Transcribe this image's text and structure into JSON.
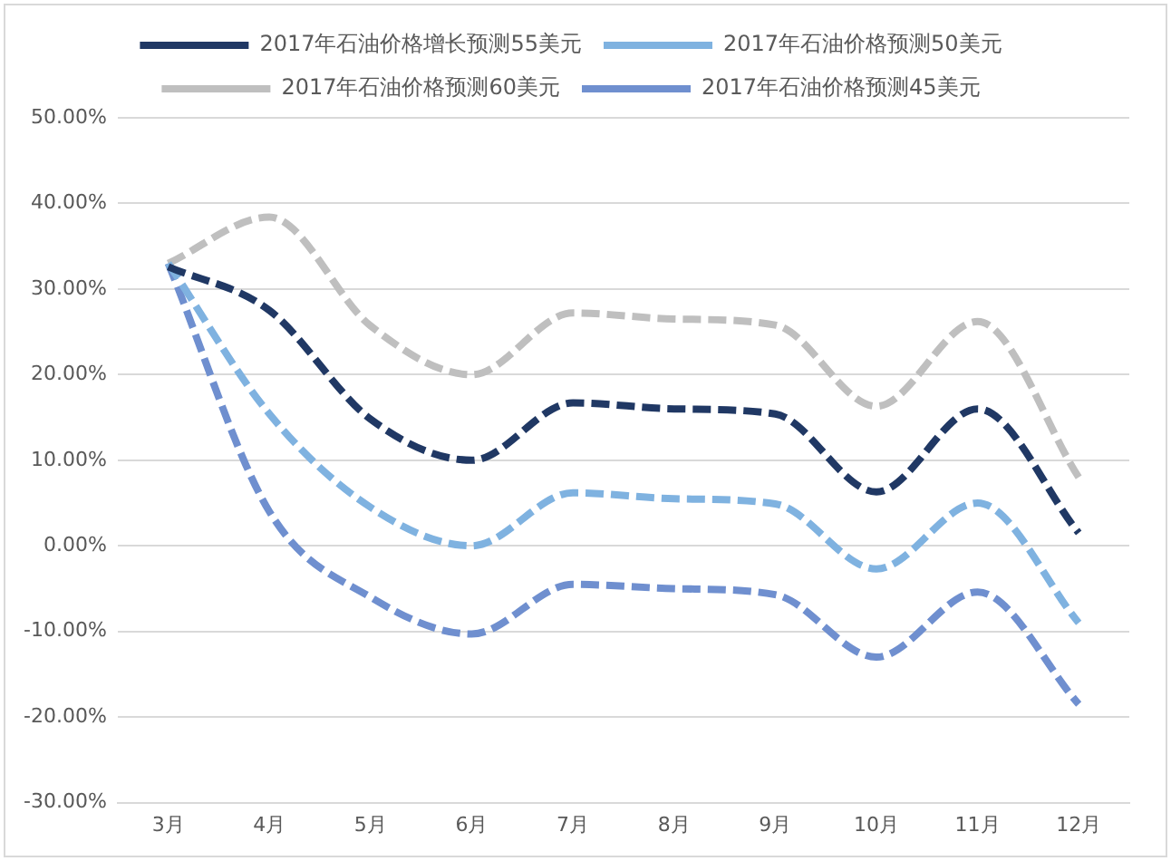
{
  "chart_data": {
    "type": "line",
    "categories": [
      "3月",
      "4月",
      "5月",
      "6月",
      "7月",
      "8月",
      "9月",
      "10月",
      "11月",
      "12月"
    ],
    "series": [
      {
        "name": "2017年石油价格增长预测55美元",
        "color": "#203864",
        "values": [
          32.6,
          27.5,
          14.8,
          10,
          16.7,
          16,
          15.4,
          6.3,
          16,
          1.5
        ]
      },
      {
        "name": "2017年石油价格预测50美元",
        "color": "#7fb2e0",
        "values": [
          33,
          15.4,
          4.5,
          0,
          6.2,
          5.5,
          4.9,
          -2.7,
          5,
          -9
        ]
      },
      {
        "name": "2017年石油价格预测60美元",
        "color": "#bfbfbf",
        "values": [
          33,
          38.4,
          25.7,
          20,
          27.2,
          26.5,
          25.8,
          16.3,
          26.2,
          8
        ]
      },
      {
        "name": "2017年石油价格预测45美元",
        "color": "#6f8fcf",
        "values": [
          33,
          4,
          -6,
          -10.3,
          -4.5,
          -5,
          -5.7,
          -13,
          -5.4,
          -18.5
        ]
      }
    ],
    "ylim": [
      -30,
      50
    ],
    "yticks": [
      {
        "value": -30,
        "label": "-30.00%"
      },
      {
        "value": -20,
        "label": "-20.00%"
      },
      {
        "value": -10,
        "label": "-10.00%"
      },
      {
        "value": 0,
        "label": "0.00%"
      },
      {
        "value": 10,
        "label": "10.00%"
      },
      {
        "value": 20,
        "label": "20.00%"
      },
      {
        "value": 30,
        "label": "30.00%"
      },
      {
        "value": 40,
        "label": "40.00%"
      },
      {
        "value": 50,
        "label": "50.00%"
      }
    ],
    "grid": "y",
    "legend": "top",
    "marker": "none",
    "line_style": "dashed"
  }
}
